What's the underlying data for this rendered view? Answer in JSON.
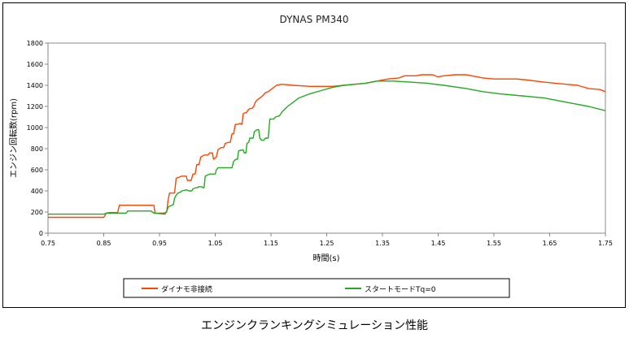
{
  "caption": "エンジンクランキングシミュレーション性能",
  "chart_data": {
    "type": "line",
    "title": "DYNAS PM340",
    "xlabel": "時間(s)",
    "ylabel": "エンジン回転数(rpm)",
    "xlim": [
      0.75,
      1.75
    ],
    "ylim": [
      0,
      1800
    ],
    "x_ticks": [
      "0.75",
      "0.85",
      "0.95",
      "1.05",
      "1.15",
      "1.25",
      "1.35",
      "1.45",
      "1.55",
      "1.65",
      "1.75"
    ],
    "y_ticks": [
      "0",
      "200",
      "400",
      "600",
      "800",
      "1000",
      "1200",
      "1400",
      "1600",
      "1800"
    ],
    "grid": false,
    "legend_position": "bottom",
    "series": [
      {
        "name": "ダイナモ非接続",
        "color": "#ff4400",
        "points": [
          [
            0.75,
            150
          ],
          [
            0.85,
            150
          ],
          [
            0.855,
            190
          ],
          [
            0.86,
            195
          ],
          [
            0.875,
            195
          ],
          [
            0.878,
            265
          ],
          [
            0.94,
            265
          ],
          [
            0.942,
            190
          ],
          [
            0.958,
            190
          ],
          [
            0.963,
            200
          ],
          [
            0.965,
            300
          ],
          [
            0.968,
            380
          ],
          [
            0.977,
            380
          ],
          [
            0.98,
            520
          ],
          [
            0.99,
            540
          ],
          [
            0.998,
            540
          ],
          [
            1.0,
            500
          ],
          [
            1.007,
            500
          ],
          [
            1.01,
            560
          ],
          [
            1.014,
            560
          ],
          [
            1.017,
            650
          ],
          [
            1.021,
            650
          ],
          [
            1.024,
            720
          ],
          [
            1.03,
            740
          ],
          [
            1.037,
            740
          ],
          [
            1.04,
            760
          ],
          [
            1.045,
            760
          ],
          [
            1.047,
            700
          ],
          [
            1.052,
            720
          ],
          [
            1.055,
            790
          ],
          [
            1.06,
            810
          ],
          [
            1.065,
            810
          ],
          [
            1.068,
            850
          ],
          [
            1.074,
            860
          ],
          [
            1.077,
            860
          ],
          [
            1.08,
            940
          ],
          [
            1.083,
            940
          ],
          [
            1.086,
            1030
          ],
          [
            1.09,
            1030
          ],
          [
            1.095,
            1040
          ],
          [
            1.098,
            1030
          ],
          [
            1.1,
            1130
          ],
          [
            1.103,
            1140
          ],
          [
            1.106,
            1140
          ],
          [
            1.108,
            1160
          ],
          [
            1.112,
            1180
          ],
          [
            1.116,
            1180
          ],
          [
            1.119,
            1200
          ],
          [
            1.122,
            1240
          ],
          [
            1.125,
            1260
          ],
          [
            1.13,
            1280
          ],
          [
            1.135,
            1300
          ],
          [
            1.14,
            1330
          ],
          [
            1.145,
            1340
          ],
          [
            1.15,
            1360
          ],
          [
            1.155,
            1380
          ],
          [
            1.16,
            1400
          ],
          [
            1.17,
            1410
          ],
          [
            1.19,
            1400
          ],
          [
            1.22,
            1390
          ],
          [
            1.26,
            1390
          ],
          [
            1.28,
            1400
          ],
          [
            1.3,
            1410
          ],
          [
            1.32,
            1420
          ],
          [
            1.34,
            1440
          ],
          [
            1.36,
            1460
          ],
          [
            1.38,
            1470
          ],
          [
            1.39,
            1490
          ],
          [
            1.41,
            1490
          ],
          [
            1.42,
            1500
          ],
          [
            1.44,
            1500
          ],
          [
            1.45,
            1480
          ],
          [
            1.46,
            1490
          ],
          [
            1.48,
            1500
          ],
          [
            1.5,
            1500
          ],
          [
            1.52,
            1480
          ],
          [
            1.53,
            1470
          ],
          [
            1.55,
            1460
          ],
          [
            1.59,
            1460
          ],
          [
            1.61,
            1450
          ],
          [
            1.64,
            1430
          ],
          [
            1.66,
            1420
          ],
          [
            1.68,
            1410
          ],
          [
            1.7,
            1400
          ],
          [
            1.72,
            1370
          ],
          [
            1.74,
            1360
          ],
          [
            1.75,
            1340
          ]
        ]
      },
      {
        "name": "スタートモードTq=0",
        "color": "#22aa22",
        "points": [
          [
            0.75,
            180
          ],
          [
            0.85,
            180
          ],
          [
            0.855,
            190
          ],
          [
            0.86,
            190
          ],
          [
            0.89,
            190
          ],
          [
            0.893,
            210
          ],
          [
            0.935,
            210
          ],
          [
            0.94,
            190
          ],
          [
            0.96,
            180
          ],
          [
            0.963,
            210
          ],
          [
            0.966,
            250
          ],
          [
            0.97,
            260
          ],
          [
            0.975,
            270
          ],
          [
            0.977,
            330
          ],
          [
            0.98,
            360
          ],
          [
            0.983,
            380
          ],
          [
            0.988,
            390
          ],
          [
            0.99,
            400
          ],
          [
            0.998,
            410
          ],
          [
            1.003,
            400
          ],
          [
            1.008,
            400
          ],
          [
            1.01,
            420
          ],
          [
            1.015,
            430
          ],
          [
            1.018,
            430
          ],
          [
            1.02,
            440
          ],
          [
            1.026,
            440
          ],
          [
            1.028,
            430
          ],
          [
            1.03,
            430
          ],
          [
            1.032,
            540
          ],
          [
            1.04,
            560
          ],
          [
            1.05,
            560
          ],
          [
            1.052,
            600
          ],
          [
            1.055,
            620
          ],
          [
            1.08,
            620
          ],
          [
            1.083,
            680
          ],
          [
            1.087,
            700
          ],
          [
            1.09,
            700
          ],
          [
            1.092,
            780
          ],
          [
            1.1,
            790
          ],
          [
            1.102,
            760
          ],
          [
            1.105,
            760
          ],
          [
            1.107,
            850
          ],
          [
            1.11,
            860
          ],
          [
            1.112,
            900
          ],
          [
            1.118,
            900
          ],
          [
            1.12,
            960
          ],
          [
            1.125,
            980
          ],
          [
            1.128,
            980
          ],
          [
            1.13,
            900
          ],
          [
            1.133,
            880
          ],
          [
            1.137,
            880
          ],
          [
            1.14,
            900
          ],
          [
            1.145,
            900
          ],
          [
            1.148,
            1080
          ],
          [
            1.155,
            1080
          ],
          [
            1.158,
            1100
          ],
          [
            1.165,
            1110
          ],
          [
            1.17,
            1150
          ],
          [
            1.18,
            1200
          ],
          [
            1.19,
            1240
          ],
          [
            1.2,
            1280
          ],
          [
            1.22,
            1320
          ],
          [
            1.24,
            1350
          ],
          [
            1.26,
            1380
          ],
          [
            1.28,
            1400
          ],
          [
            1.3,
            1410
          ],
          [
            1.32,
            1420
          ],
          [
            1.34,
            1440
          ],
          [
            1.37,
            1440
          ],
          [
            1.4,
            1430
          ],
          [
            1.43,
            1420
          ],
          [
            1.46,
            1400
          ],
          [
            1.5,
            1370
          ],
          [
            1.53,
            1340
          ],
          [
            1.56,
            1320
          ],
          [
            1.6,
            1300
          ],
          [
            1.64,
            1280
          ],
          [
            1.68,
            1240
          ],
          [
            1.72,
            1200
          ],
          [
            1.75,
            1160
          ]
        ]
      }
    ]
  }
}
